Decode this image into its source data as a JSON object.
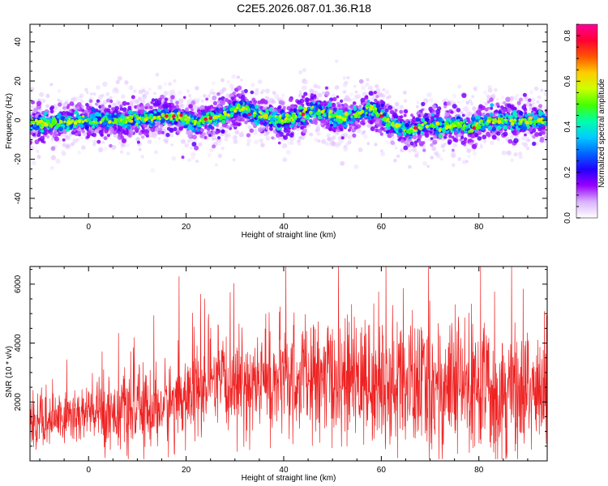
{
  "title": "C2E5.2026.087.01.36.R18",
  "chart_data": [
    {
      "type": "heatmap",
      "xlabel": "Height of straight line (km)",
      "ylabel": "Frequency (Hz)",
      "xlim": [
        -12,
        94
      ],
      "ylim": [
        -50,
        49
      ],
      "xticks": [
        0,
        20,
        40,
        60,
        80
      ],
      "yticks": [
        40,
        20,
        0,
        -20,
        -40
      ],
      "colorbar": {
        "label": "Normalized spectral amplitude",
        "range": [
          0.0,
          0.85
        ],
        "ticks": [
          "0.0",
          "0.2",
          "0.4",
          "0.6",
          "0.8"
        ],
        "colormap": [
          "#ffffff",
          "#d9b3ff",
          "#9900ff",
          "#2200ff",
          "#0066ff",
          "#00ccff",
          "#00ffaa",
          "#44ff00",
          "#ccff00",
          "#ffcc00",
          "#ff5500",
          "#ff0033",
          "#ff0099"
        ]
      },
      "center_frequency_trace": {
        "x": [
          -12,
          -8,
          -4,
          0,
          4,
          8,
          12,
          16,
          20,
          22,
          24,
          26,
          28,
          30,
          32,
          34,
          36,
          38,
          40,
          42,
          44,
          46,
          48,
          50,
          52,
          54,
          56,
          58,
          60,
          62,
          64,
          66,
          68,
          70,
          72,
          74,
          76,
          78,
          80,
          82,
          84,
          86,
          88,
          90,
          92,
          94
        ],
        "y": [
          -1,
          -2,
          -1,
          0,
          0,
          0,
          1,
          2,
          1,
          -2,
          0,
          1,
          3,
          5,
          6,
          3,
          2,
          0,
          0,
          1,
          3,
          5,
          4,
          2,
          1,
          2,
          4,
          6,
          3,
          -2,
          -4,
          -6,
          -3,
          -2,
          -4,
          -3,
          -2,
          -5,
          -2,
          0,
          0,
          0,
          -1,
          -1,
          0,
          0
        ]
      }
    },
    {
      "type": "line",
      "xlabel": "Height of straight line (km)",
      "ylabel": "SNR (10 * v/v)",
      "xlim": [
        -12,
        94
      ],
      "ylim": [
        0,
        6600
      ],
      "xticks": [
        0,
        20,
        40,
        60,
        80
      ],
      "yticks": [
        2000,
        4000,
        6000
      ],
      "color": "#ee2222",
      "trend": {
        "x": [
          -12,
          -5,
          0,
          5,
          10,
          15,
          20,
          25,
          30,
          35,
          40,
          45,
          50,
          55,
          60,
          65,
          70,
          75,
          80,
          85,
          90,
          94
        ],
        "y": [
          1200,
          1500,
          1600,
          1700,
          1700,
          1800,
          2200,
          2500,
          2600,
          2650,
          2700,
          2750,
          2750,
          2700,
          2650,
          2550,
          2500,
          2500,
          2450,
          2400,
          2400,
          2400
        ]
      },
      "spread": {
        "x": [
          -12,
          -5,
          0,
          10,
          20,
          30,
          40,
          50,
          60,
          70,
          80,
          94
        ],
        "y": [
          500,
          600,
          700,
          800,
          900,
          1000,
          1100,
          1200,
          1300,
          1400,
          1400,
          1300
        ]
      }
    }
  ]
}
